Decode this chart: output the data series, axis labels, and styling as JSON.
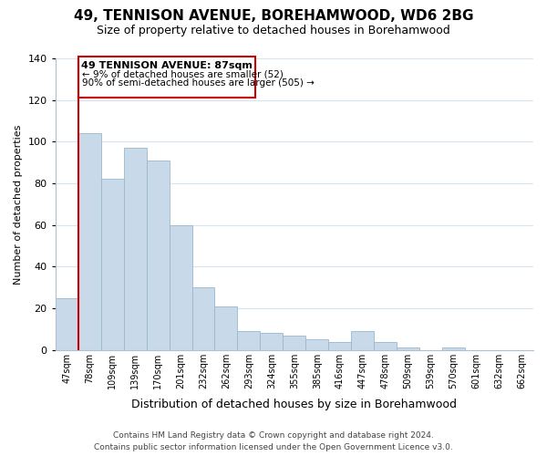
{
  "title": "49, TENNISON AVENUE, BOREHAMWOOD, WD6 2BG",
  "subtitle": "Size of property relative to detached houses in Borehamwood",
  "xlabel": "Distribution of detached houses by size in Borehamwood",
  "ylabel": "Number of detached properties",
  "bar_labels": [
    "47sqm",
    "78sqm",
    "109sqm",
    "139sqm",
    "170sqm",
    "201sqm",
    "232sqm",
    "262sqm",
    "293sqm",
    "324sqm",
    "355sqm",
    "385sqm",
    "416sqm",
    "447sqm",
    "478sqm",
    "509sqm",
    "539sqm",
    "570sqm",
    "601sqm",
    "632sqm",
    "662sqm"
  ],
  "bar_values": [
    25,
    104,
    82,
    97,
    91,
    60,
    30,
    21,
    9,
    8,
    7,
    5,
    4,
    9,
    4,
    1,
    0,
    1,
    0,
    0,
    0
  ],
  "bar_color": "#c8daea",
  "bar_edge_color": "#9ab8cc",
  "vline_color": "#cc0000",
  "vline_x_index": 1,
  "ylim": [
    0,
    140
  ],
  "yticks": [
    0,
    20,
    40,
    60,
    80,
    100,
    120,
    140
  ],
  "annotation_title": "49 TENNISON AVENUE: 87sqm",
  "annotation_line1": "← 9% of detached houses are smaller (52)",
  "annotation_line2": "90% of semi-detached houses are larger (505) →",
  "annotation_box_color": "#ffffff",
  "annotation_box_edge": "#cc0000",
  "footer_line1": "Contains HM Land Registry data © Crown copyright and database right 2024.",
  "footer_line2": "Contains public sector information licensed under the Open Government Licence v3.0.",
  "bg_color": "#ffffff",
  "grid_color": "#d8e4f0"
}
